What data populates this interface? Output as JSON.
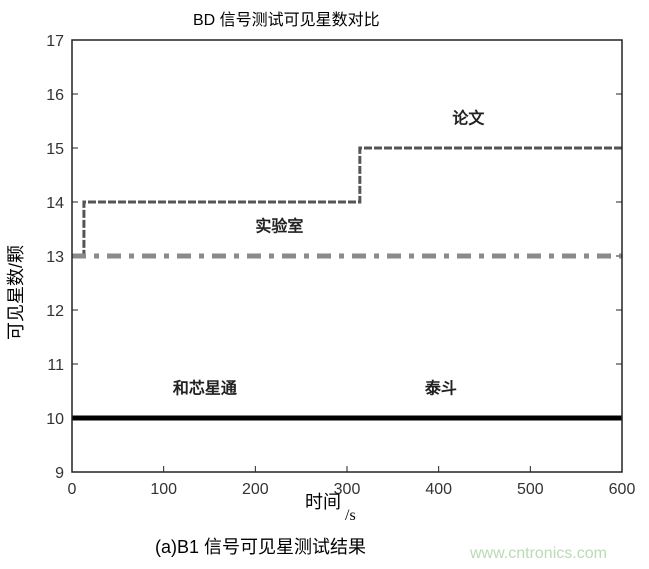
{
  "chart_data": {
    "type": "line",
    "title": "BD 信号测试可见星数对比",
    "xlabel": "时间",
    "xlabel_unit": "/s",
    "ylabel": "可见星数/颗",
    "caption": "(a)B1 信号可见星测试结果",
    "watermark": "www.cntronics.com",
    "xlim": [
      0,
      600
    ],
    "ylim": [
      9,
      17
    ],
    "xticks": [
      "0",
      "100",
      "200",
      "300",
      "400",
      "500",
      "600"
    ],
    "yticks": [
      "9",
      "10",
      "11",
      "12",
      "13",
      "14",
      "15",
      "16",
      "17"
    ],
    "grid": false,
    "series": [
      {
        "name": "论文",
        "style": "dashed",
        "color": "#555555",
        "x": [
          0,
          13,
          13,
          314,
          314,
          600
        ],
        "y": [
          13,
          13,
          14,
          14,
          15,
          15
        ]
      },
      {
        "name": "实验室",
        "style": "dash-dot",
        "color": "#8a8a8a",
        "x": [
          0,
          600
        ],
        "y": [
          13,
          13
        ]
      },
      {
        "name": "和芯星通",
        "style": "solid",
        "color": "#000000",
        "x": [
          0,
          600
        ],
        "y": [
          10,
          10
        ]
      },
      {
        "name": "泰斗",
        "style": "solid",
        "color": "#000000",
        "x": [
          0,
          600
        ],
        "y": [
          10,
          10
        ]
      }
    ],
    "annotations": [
      {
        "text": "论文",
        "x": 415,
        "y": 15.45
      },
      {
        "text": "实验室",
        "x": 200,
        "y": 13.45
      },
      {
        "text": "和芯星通",
        "x": 110,
        "y": 10.45
      },
      {
        "text": "泰斗",
        "x": 385,
        "y": 10.45
      }
    ]
  }
}
